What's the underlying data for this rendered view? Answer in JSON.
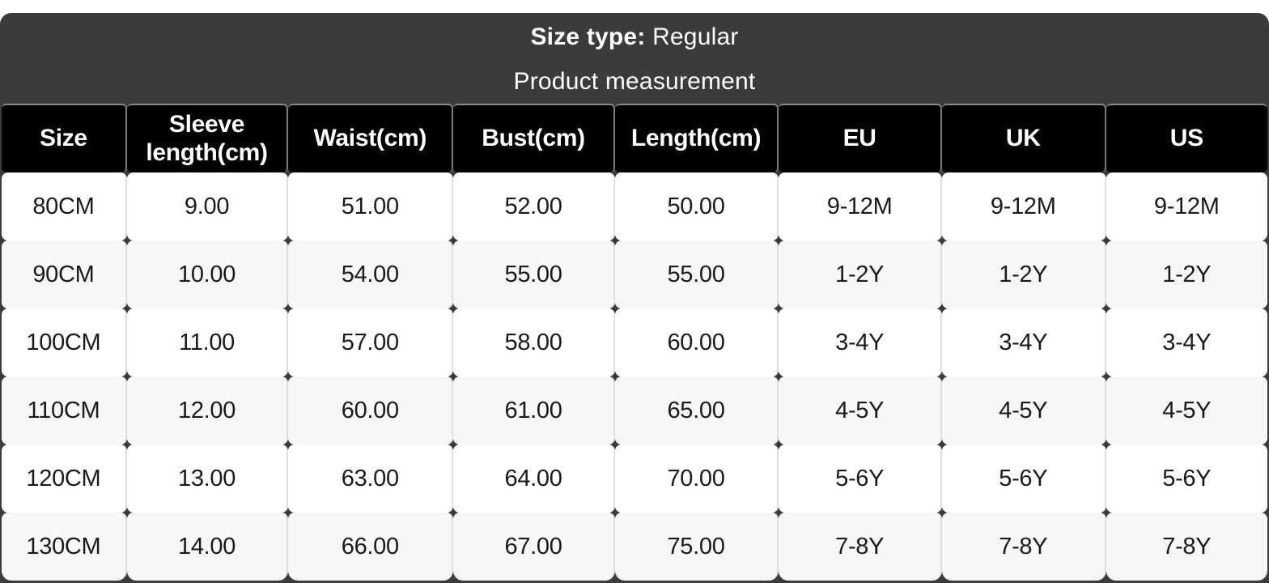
{
  "header": {
    "size_type_label": "Size type:",
    "size_type_value": "Regular",
    "subtitle": "Product measurement"
  },
  "table": {
    "columns": [
      "Size",
      "Sleeve length(cm)",
      "Waist(cm)",
      "Bust(cm)",
      "Length(cm)",
      "EU",
      "UK",
      "US"
    ],
    "rows": [
      [
        "80CM",
        "9.00",
        "51.00",
        "52.00",
        "50.00",
        "9-12M",
        "9-12M",
        "9-12M"
      ],
      [
        "90CM",
        "10.00",
        "54.00",
        "55.00",
        "55.00",
        "1-2Y",
        "1-2Y",
        "1-2Y"
      ],
      [
        "100CM",
        "11.00",
        "57.00",
        "58.00",
        "60.00",
        "3-4Y",
        "3-4Y",
        "3-4Y"
      ],
      [
        "110CM",
        "12.00",
        "60.00",
        "61.00",
        "65.00",
        "4-5Y",
        "4-5Y",
        "4-5Y"
      ],
      [
        "120CM",
        "13.00",
        "63.00",
        "64.00",
        "70.00",
        "5-6Y",
        "5-6Y",
        "5-6Y"
      ],
      [
        "130CM",
        "14.00",
        "66.00",
        "67.00",
        "75.00",
        "7-8Y",
        "7-8Y",
        "7-8Y"
      ]
    ]
  },
  "colors": {
    "panel_background": "#3b3b3b",
    "header_row_background": "#000000",
    "header_text": "#ffffff",
    "row_background": "#ffffff",
    "row_alt_background": "#f7f7f7",
    "cell_text": "#1a1a1a",
    "column_divider": "#dedede",
    "header_divider": "#7b7b7b"
  }
}
